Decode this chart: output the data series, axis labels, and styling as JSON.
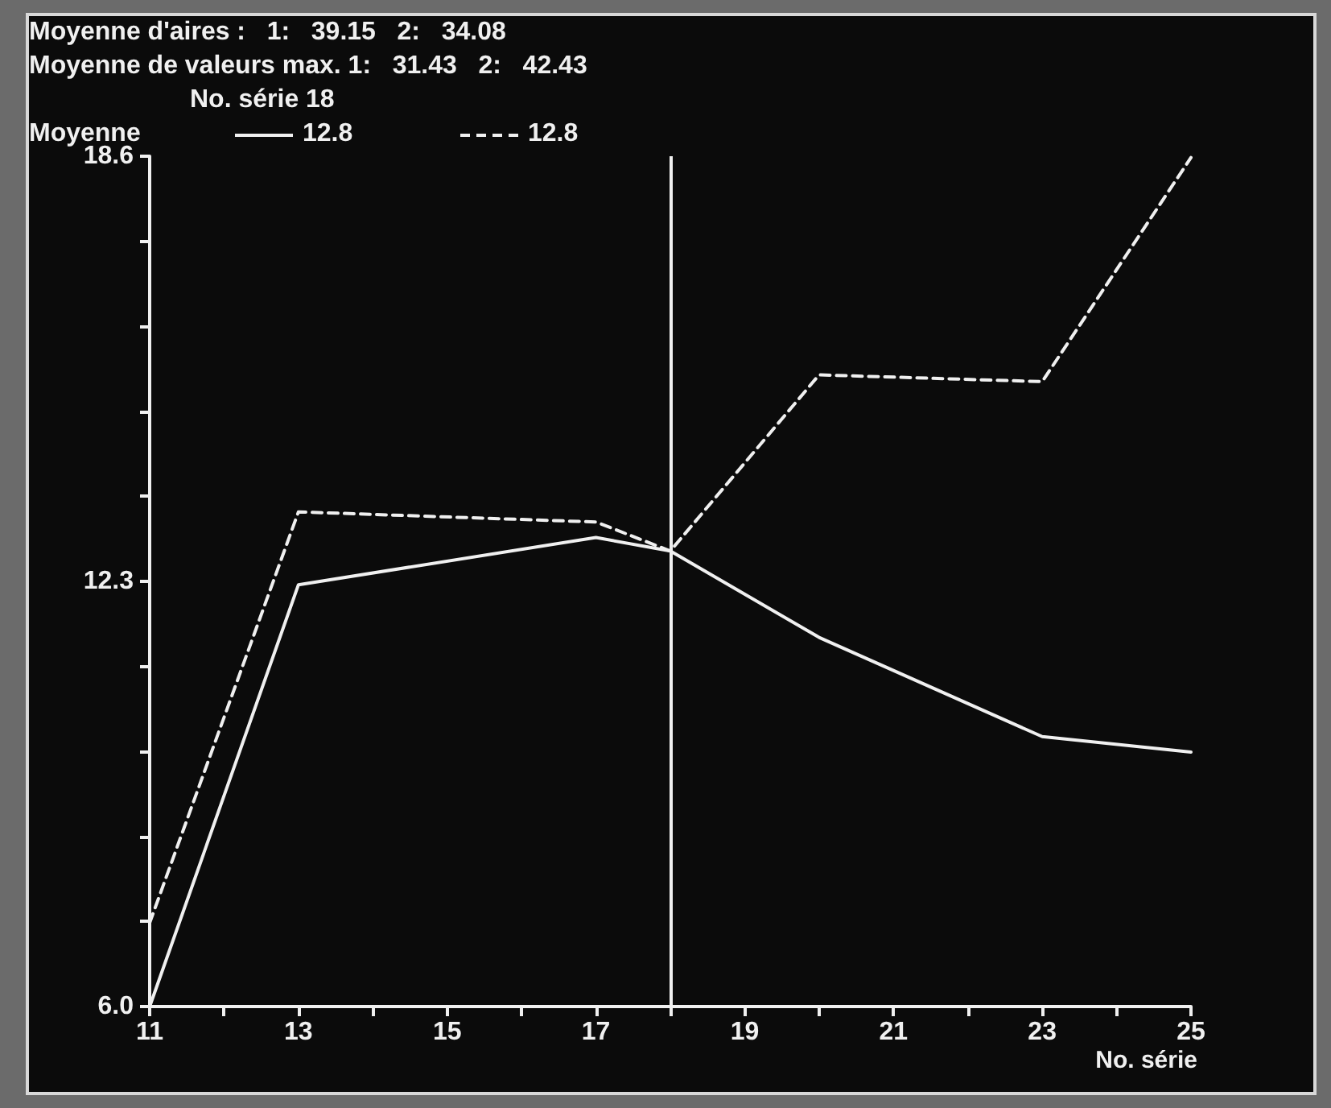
{
  "chart_data": {
    "type": "line",
    "annotations": [
      "Moyenne d'aires :   1:   39.15   2:   34.08",
      "Moyenne de valeurs max. 1:   31.43   2:   42.43",
      "No. série 18"
    ],
    "legend_title": "Moyenne",
    "xlabel": "No. série",
    "x": [
      11,
      13,
      17,
      18,
      20,
      23,
      25
    ],
    "series": [
      {
        "name": "12.8",
        "color": "#f0f0f0",
        "line_style": "solid",
        "values": [
          6.0,
          12.25,
          12.95,
          12.75,
          11.47,
          10.0,
          9.77
        ]
      },
      {
        "name": "12.8",
        "color": "#f0f0f0",
        "line_style": "dashed",
        "values": [
          7.24,
          13.33,
          13.18,
          12.75,
          15.36,
          15.26,
          18.58
        ]
      }
    ],
    "xlim": [
      11,
      25
    ],
    "xticks": [
      11,
      {
        "value": 12,
        "label": null
      },
      13,
      {
        "value": 14,
        "label": null
      },
      15,
      {
        "value": 16,
        "label": null
      },
      17,
      {
        "value": 18,
        "label": null
      },
      19,
      {
        "value": 20,
        "label": null
      },
      21,
      {
        "value": 22,
        "label": null
      },
      23,
      {
        "value": 24,
        "label": null
      },
      25
    ],
    "ylim": [
      6.0,
      18.6
    ],
    "yticks": [
      {
        "value": 6.0,
        "label": "6.0"
      },
      {
        "value": 7.26,
        "label": null
      },
      {
        "value": 8.52,
        "label": null
      },
      {
        "value": 9.78,
        "label": null
      },
      {
        "value": 11.04,
        "label": null
      },
      12.3,
      {
        "value": 13.56,
        "label": null
      },
      {
        "value": 14.82,
        "label": null
      },
      {
        "value": 16.08,
        "label": null
      },
      {
        "value": 17.34,
        "label": null
      },
      18.6
    ],
    "ref_lines": [
      {
        "axis": "x",
        "value": 18,
        "label": null,
        "color": "#f0f0f0",
        "line_style": "solid"
      }
    ],
    "legend": "top left",
    "marker": "none",
    "grid": false
  }
}
